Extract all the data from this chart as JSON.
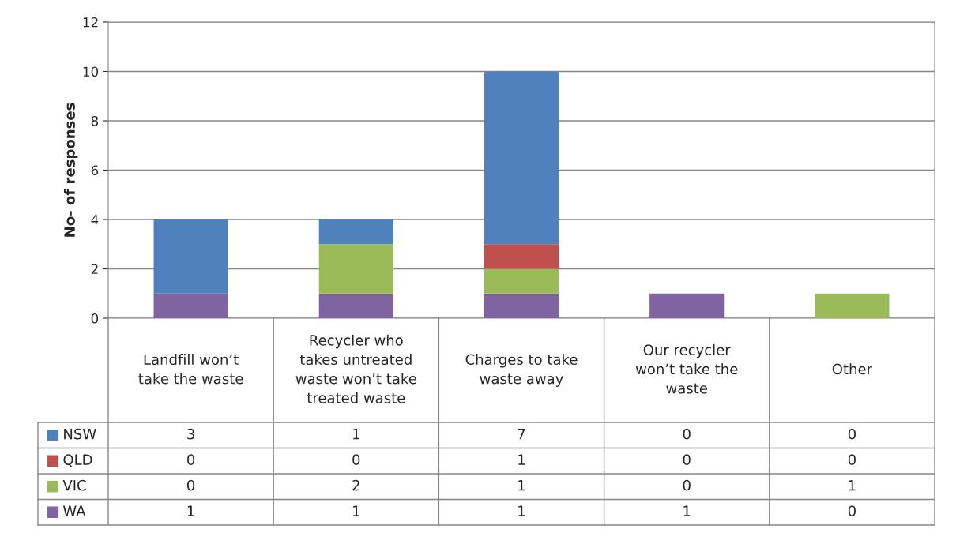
{
  "chart_data": {
    "type": "bar",
    "stacked": true,
    "ylabel": "No- of responses",
    "categories": [
      "Landfill won’t\ntake the waste",
      "Recycler who\ntakes untreated\nwaste won’t take\ntreated waste",
      "Charges to take\nwaste away",
      "Our recycler\nwon’t take the\nwaste",
      "Other"
    ],
    "series": [
      {
        "name": "WA",
        "color": "#8064a2",
        "values": [
          1,
          1,
          1,
          1,
          0
        ]
      },
      {
        "name": "VIC",
        "color": "#9bbb59",
        "values": [
          0,
          2,
          1,
          0,
          1
        ]
      },
      {
        "name": "QLD",
        "color": "#c0504d",
        "values": [
          0,
          0,
          1,
          0,
          0
        ]
      },
      {
        "name": "NSW",
        "color": "#4f81bd",
        "values": [
          3,
          1,
          7,
          0,
          0
        ]
      }
    ],
    "ylim": [
      0,
      12
    ],
    "yticks": [
      0,
      2,
      4,
      6,
      8,
      10,
      12
    ],
    "grid": "y",
    "legend": "bottom",
    "data_labels": true
  }
}
